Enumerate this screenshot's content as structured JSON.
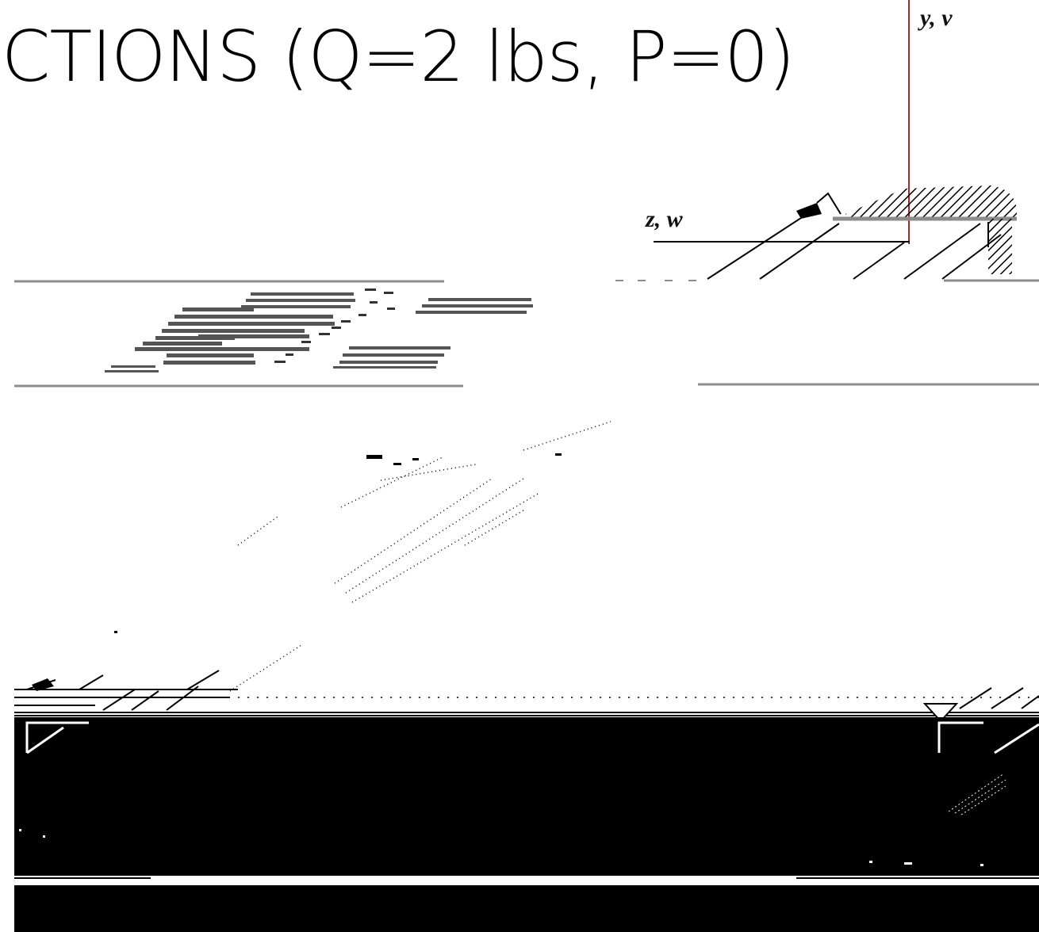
{
  "slide": {
    "title": "CTIONS (Q=2 lbs, P=0)"
  },
  "axes": {
    "vertical_label": "y, v",
    "horizontal_label": "z, w"
  },
  "colors": {
    "background": "#ffffff",
    "ink": "#000000",
    "vertical_axis": "#b22222",
    "gray_line": "#8c8c8c"
  }
}
